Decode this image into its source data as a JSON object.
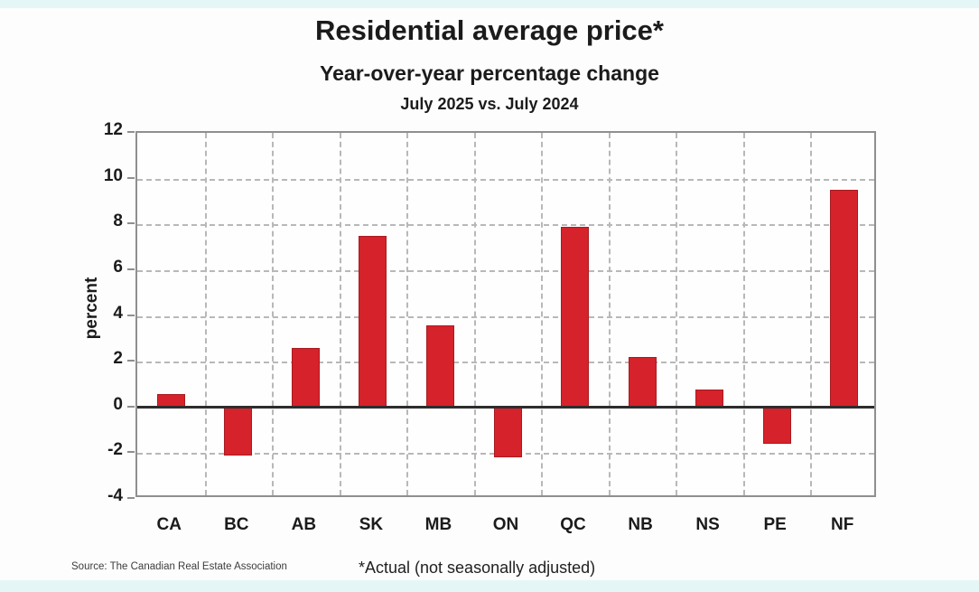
{
  "page": {
    "background_color": "#fdfdfd",
    "edge_strip_color": "#e4f7f6"
  },
  "header": {
    "title": "Residential average price*",
    "subtitle": "Year-over-year percentage change",
    "period": "July 2025 vs. July 2024"
  },
  "chart_data": {
    "type": "bar",
    "title": "Residential average price*",
    "subtitle": "Year-over-year percentage change",
    "period_label": "July 2025 vs. July 2024",
    "categories": [
      "CA",
      "BC",
      "AB",
      "SK",
      "MB",
      "ON",
      "QC",
      "NB",
      "NS",
      "PE",
      "NF"
    ],
    "values": [
      0.6,
      -2.1,
      2.6,
      7.5,
      3.6,
      -2.2,
      7.9,
      2.2,
      0.8,
      -1.6,
      9.5
    ],
    "xlabel": "",
    "ylabel": "percent",
    "ylim": [
      -4,
      12
    ],
    "yticks": [
      12,
      10,
      8,
      6,
      4,
      2,
      0,
      -2,
      -4
    ],
    "grid": "dashed horizontal and vertical gridlines, solid zero axis",
    "legend": "none",
    "bar_color": "#d6222a",
    "bar_border_color": "#a81b21",
    "plot_border_color": "#8f8f8f",
    "gridline_color": "#b8b8b8",
    "zero_line_color": "#2d2d2d"
  },
  "footer": {
    "source": "Source: The Canadian Real Estate Association",
    "footnote": "*Actual (not seasonally adjusted)"
  }
}
